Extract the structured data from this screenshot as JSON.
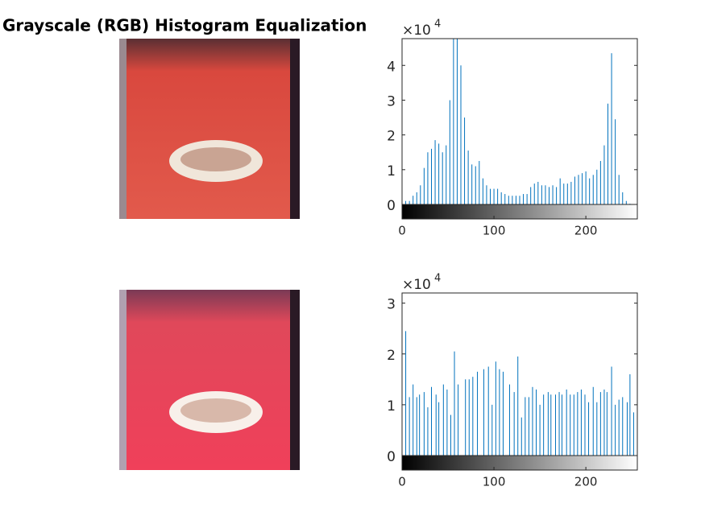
{
  "title": "Grayscale (RGB) Histogram Equalization",
  "chart_data": [
    {
      "type": "stem",
      "color": "#0072bd",
      "y_multiplier": {
        "base": "×10",
        "power": "4"
      },
      "x": [
        0,
        4,
        8,
        12,
        16,
        20,
        24,
        28,
        32,
        36,
        40,
        44,
        48,
        52,
        56,
        60,
        64,
        68,
        72,
        76,
        80,
        84,
        88,
        92,
        96,
        100,
        104,
        108,
        112,
        116,
        120,
        124,
        128,
        132,
        136,
        140,
        144,
        148,
        152,
        156,
        160,
        164,
        168,
        172,
        176,
        180,
        184,
        188,
        192,
        196,
        200,
        204,
        208,
        212,
        216,
        220,
        224,
        228,
        232,
        236,
        240,
        244,
        248
      ],
      "values": [
        2.1,
        0.1,
        0.1,
        0.25,
        0.35,
        0.55,
        1.05,
        1.5,
        1.6,
        1.85,
        1.75,
        1.5,
        1.7,
        3.0,
        5.6,
        5.3,
        4.0,
        2.5,
        1.55,
        1.15,
        1.1,
        1.25,
        0.75,
        0.55,
        0.45,
        0.45,
        0.45,
        0.35,
        0.3,
        0.25,
        0.25,
        0.25,
        0.25,
        0.3,
        0.3,
        0.5,
        0.6,
        0.65,
        0.55,
        0.55,
        0.5,
        0.55,
        0.5,
        0.75,
        0.6,
        0.6,
        0.65,
        0.8,
        0.85,
        0.9,
        0.95,
        0.75,
        0.85,
        1.0,
        1.25,
        1.7,
        2.9,
        4.35,
        2.45,
        0.85,
        0.35,
        0.1,
        0.02
      ],
      "xlim": [
        0,
        256
      ],
      "xticks": [
        0,
        100,
        200
      ],
      "ylim": [
        0,
        4.77
      ],
      "yticks": [
        0,
        1,
        2,
        3,
        4
      ]
    },
    {
      "type": "stem",
      "color": "#0072bd",
      "y_multiplier": {
        "base": "×10",
        "power": "4"
      },
      "x": [
        4,
        8,
        12,
        16,
        19,
        24,
        28,
        32,
        37,
        40,
        45,
        49,
        53,
        57,
        61,
        69,
        73,
        77,
        82,
        89,
        94,
        98,
        102,
        106,
        110,
        117,
        122,
        126,
        130,
        134,
        138,
        142,
        146,
        150,
        154,
        159,
        162,
        167,
        171,
        174,
        179,
        183,
        187,
        191,
        195,
        199,
        203,
        208,
        212,
        216,
        220,
        223,
        228,
        232,
        236,
        240,
        245,
        248,
        252,
        256
      ],
      "values": [
        2.45,
        1.15,
        1.4,
        1.15,
        1.2,
        1.25,
        0.95,
        1.35,
        1.2,
        1.05,
        1.4,
        1.3,
        0.8,
        2.05,
        1.4,
        1.5,
        1.5,
        1.55,
        1.65,
        1.7,
        1.75,
        1.0,
        1.85,
        1.7,
        1.65,
        1.4,
        1.25,
        1.95,
        0.75,
        1.15,
        1.15,
        1.35,
        1.3,
        1.0,
        1.2,
        1.25,
        1.2,
        1.2,
        1.25,
        1.2,
        1.3,
        1.2,
        1.2,
        1.25,
        1.3,
        1.2,
        1.05,
        1.35,
        1.05,
        1.25,
        1.3,
        1.25,
        1.75,
        1.0,
        1.1,
        1.15,
        1.05,
        1.6,
        0.85,
        1.35
      ],
      "xlim": [
        0,
        256
      ],
      "xticks": [
        0,
        100,
        200
      ],
      "ylim": [
        0,
        3.2
      ],
      "yticks": [
        0,
        1,
        2,
        3
      ]
    }
  ]
}
